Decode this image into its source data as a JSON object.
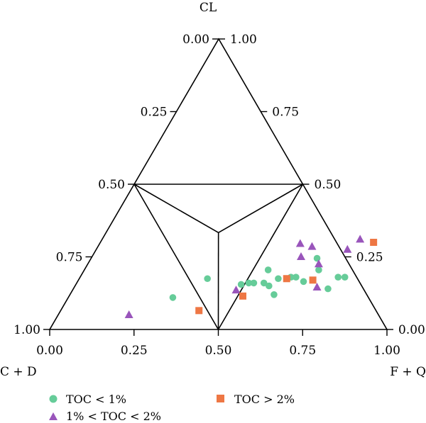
{
  "chart_data": {
    "type": "scatter",
    "subtype": "ternary",
    "vertex_labels": {
      "top": "CL",
      "left": "C + D",
      "right": "F + Q"
    },
    "ticks": {
      "left": [
        "0.00",
        "0.25",
        "0.50",
        "0.75",
        "1.00"
      ],
      "right": [
        "1.00",
        "0.75",
        "0.50",
        "0.25",
        "0.00"
      ],
      "bottom": [
        "0.00",
        "0.25",
        "0.50",
        "0.75",
        "1.00"
      ]
    },
    "legend_position": "bottom",
    "series": [
      {
        "name": "TOC < 1%",
        "marker": "circle",
        "color": "#66cc99",
        "points": [
          {
            "fq": 0.38,
            "cl": 0.175
          },
          {
            "fq": 0.31,
            "cl": 0.11
          },
          {
            "fq": 0.49,
            "cl": 0.155
          },
          {
            "fq": 0.51,
            "cl": 0.16
          },
          {
            "fq": 0.525,
            "cl": 0.16
          },
          {
            "fq": 0.545,
            "cl": 0.205
          },
          {
            "fq": 0.555,
            "cl": 0.16
          },
          {
            "fq": 0.575,
            "cl": 0.15
          },
          {
            "fq": 0.59,
            "cl": 0.175
          },
          {
            "fq": 0.605,
            "cl": 0.12
          },
          {
            "fq": 0.625,
            "cl": 0.18
          },
          {
            "fq": 0.64,
            "cl": 0.18
          },
          {
            "fq": 0.67,
            "cl": 0.165
          },
          {
            "fq": 0.67,
            "cl": 0.245
          },
          {
            "fq": 0.695,
            "cl": 0.205
          },
          {
            "fq": 0.755,
            "cl": 0.14
          },
          {
            "fq": 0.765,
            "cl": 0.18
          },
          {
            "fq": 0.785,
            "cl": 0.18
          }
        ]
      },
      {
        "name": "1% < TOC < 2%",
        "marker": "triangle",
        "color": "#9955bb",
        "points": [
          {
            "fq": 0.21,
            "cl": 0.05
          },
          {
            "fq": 0.485,
            "cl": 0.135
          },
          {
            "fq": 0.595,
            "cl": 0.295
          },
          {
            "fq": 0.62,
            "cl": 0.25
          },
          {
            "fq": 0.635,
            "cl": 0.285
          },
          {
            "fq": 0.685,
            "cl": 0.225
          },
          {
            "fq": 0.72,
            "cl": 0.145
          },
          {
            "fq": 0.745,
            "cl": 0.275
          },
          {
            "fq": 0.765,
            "cl": 0.31
          }
        ]
      },
      {
        "name": "TOC > 2%",
        "marker": "square",
        "color": "#ee7744",
        "points": [
          {
            "fq": 0.41,
            "cl": 0.065
          },
          {
            "fq": 0.515,
            "cl": 0.115
          },
          {
            "fq": 0.615,
            "cl": 0.175
          },
          {
            "fq": 0.695,
            "cl": 0.17
          },
          {
            "fq": 0.81,
            "cl": 0.3
          }
        ]
      }
    ]
  },
  "legend": {
    "items": [
      {
        "label": "TOC < 1%",
        "marker": "circle",
        "color": "#66cc99"
      },
      {
        "label": "TOC > 2%",
        "marker": "square",
        "color": "#ee7744"
      },
      {
        "label": "1% < TOC < 2%",
        "marker": "triangle",
        "color": "#9955bb"
      }
    ]
  }
}
